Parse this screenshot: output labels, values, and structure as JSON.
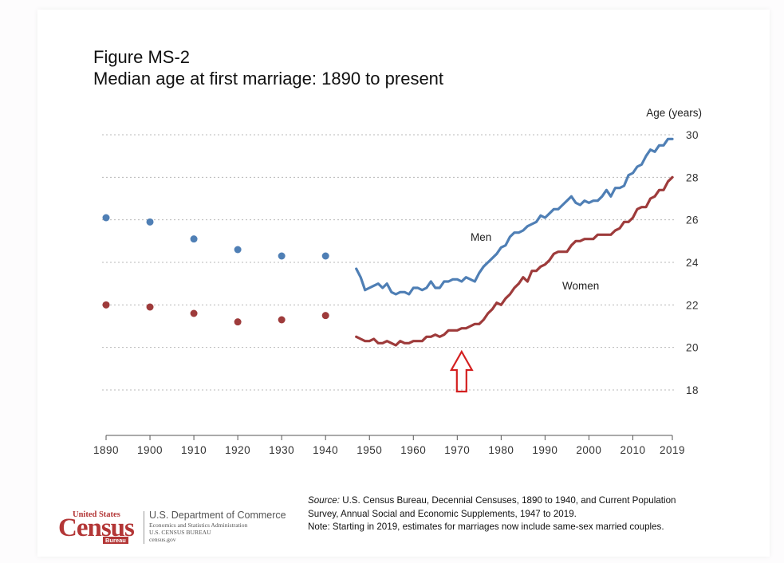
{
  "figure": {
    "title_line1": "Figure MS-2",
    "title_line2": "Median age at first marriage: 1890 to present"
  },
  "chart_data": {
    "type": "line",
    "title": "Median age at first marriage: 1890 to present",
    "ylabel": "Age (years)",
    "xlabel": "",
    "xlim": [
      1890,
      2019
    ],
    "ylim": [
      16,
      30
    ],
    "x_ticks": [
      1890,
      1900,
      1910,
      1920,
      1930,
      1940,
      1950,
      1960,
      1970,
      1980,
      1990,
      2000,
      2010,
      2019
    ],
    "y_ticks": [
      18,
      20,
      22,
      24,
      26,
      28,
      30
    ],
    "grid": "horizontal dotted",
    "series": [
      {
        "name": "Men",
        "color": "#4f7fb5",
        "points_decennial": [
          [
            1890,
            26.1
          ],
          [
            1900,
            25.9
          ],
          [
            1910,
            25.1
          ],
          [
            1920,
            24.6
          ],
          [
            1930,
            24.3
          ],
          [
            1940,
            24.3
          ]
        ],
        "line": [
          [
            1947,
            23.7
          ],
          [
            1948,
            23.3
          ],
          [
            1949,
            22.7
          ],
          [
            1950,
            22.8
          ],
          [
            1951,
            22.9
          ],
          [
            1952,
            23.0
          ],
          [
            1953,
            22.8
          ],
          [
            1954,
            23.0
          ],
          [
            1955,
            22.6
          ],
          [
            1956,
            22.5
          ],
          [
            1957,
            22.6
          ],
          [
            1958,
            22.6
          ],
          [
            1959,
            22.5
          ],
          [
            1960,
            22.8
          ],
          [
            1961,
            22.8
          ],
          [
            1962,
            22.7
          ],
          [
            1963,
            22.8
          ],
          [
            1964,
            23.1
          ],
          [
            1965,
            22.8
          ],
          [
            1966,
            22.8
          ],
          [
            1967,
            23.1
          ],
          [
            1968,
            23.1
          ],
          [
            1969,
            23.2
          ],
          [
            1970,
            23.2
          ],
          [
            1971,
            23.1
          ],
          [
            1972,
            23.3
          ],
          [
            1973,
            23.2
          ],
          [
            1974,
            23.1
          ],
          [
            1975,
            23.5
          ],
          [
            1976,
            23.8
          ],
          [
            1977,
            24.0
          ],
          [
            1978,
            24.2
          ],
          [
            1979,
            24.4
          ],
          [
            1980,
            24.7
          ],
          [
            1981,
            24.8
          ],
          [
            1982,
            25.2
          ],
          [
            1983,
            25.4
          ],
          [
            1984,
            25.4
          ],
          [
            1985,
            25.5
          ],
          [
            1986,
            25.7
          ],
          [
            1987,
            25.8
          ],
          [
            1988,
            25.9
          ],
          [
            1989,
            26.2
          ],
          [
            1990,
            26.1
          ],
          [
            1991,
            26.3
          ],
          [
            1992,
            26.5
          ],
          [
            1993,
            26.5
          ],
          [
            1994,
            26.7
          ],
          [
            1995,
            26.9
          ],
          [
            1996,
            27.1
          ],
          [
            1997,
            26.8
          ],
          [
            1998,
            26.7
          ],
          [
            1999,
            26.9
          ],
          [
            2000,
            26.8
          ],
          [
            2001,
            26.9
          ],
          [
            2002,
            26.9
          ],
          [
            2003,
            27.1
          ],
          [
            2004,
            27.4
          ],
          [
            2005,
            27.1
          ],
          [
            2006,
            27.5
          ],
          [
            2007,
            27.5
          ],
          [
            2008,
            27.6
          ],
          [
            2009,
            28.1
          ],
          [
            2010,
            28.2
          ],
          [
            2011,
            28.5
          ],
          [
            2012,
            28.6
          ],
          [
            2013,
            29.0
          ],
          [
            2014,
            29.3
          ],
          [
            2015,
            29.2
          ],
          [
            2016,
            29.5
          ],
          [
            2017,
            29.5
          ],
          [
            2018,
            29.8
          ],
          [
            2019,
            29.8
          ]
        ]
      },
      {
        "name": "Women",
        "color": "#9e3b3b",
        "points_decennial": [
          [
            1890,
            22.0
          ],
          [
            1900,
            21.9
          ],
          [
            1910,
            21.6
          ],
          [
            1920,
            21.2
          ],
          [
            1930,
            21.3
          ],
          [
            1940,
            21.5
          ]
        ],
        "line": [
          [
            1947,
            20.5
          ],
          [
            1948,
            20.4
          ],
          [
            1949,
            20.3
          ],
          [
            1950,
            20.3
          ],
          [
            1951,
            20.4
          ],
          [
            1952,
            20.2
          ],
          [
            1953,
            20.2
          ],
          [
            1954,
            20.3
          ],
          [
            1955,
            20.2
          ],
          [
            1956,
            20.1
          ],
          [
            1957,
            20.3
          ],
          [
            1958,
            20.2
          ],
          [
            1959,
            20.2
          ],
          [
            1960,
            20.3
          ],
          [
            1961,
            20.3
          ],
          [
            1962,
            20.3
          ],
          [
            1963,
            20.5
          ],
          [
            1964,
            20.5
          ],
          [
            1965,
            20.6
          ],
          [
            1966,
            20.5
          ],
          [
            1967,
            20.6
          ],
          [
            1968,
            20.8
          ],
          [
            1969,
            20.8
          ],
          [
            1970,
            20.8
          ],
          [
            1971,
            20.9
          ],
          [
            1972,
            20.9
          ],
          [
            1973,
            21.0
          ],
          [
            1974,
            21.1
          ],
          [
            1975,
            21.1
          ],
          [
            1976,
            21.3
          ],
          [
            1977,
            21.6
          ],
          [
            1978,
            21.8
          ],
          [
            1979,
            22.1
          ],
          [
            1980,
            22.0
          ],
          [
            1981,
            22.3
          ],
          [
            1982,
            22.5
          ],
          [
            1983,
            22.8
          ],
          [
            1984,
            23.0
          ],
          [
            1985,
            23.3
          ],
          [
            1986,
            23.1
          ],
          [
            1987,
            23.6
          ],
          [
            1988,
            23.6
          ],
          [
            1989,
            23.8
          ],
          [
            1990,
            23.9
          ],
          [
            1991,
            24.1
          ],
          [
            1992,
            24.4
          ],
          [
            1993,
            24.5
          ],
          [
            1994,
            24.5
          ],
          [
            1995,
            24.5
          ],
          [
            1996,
            24.8
          ],
          [
            1997,
            25.0
          ],
          [
            1998,
            25.0
          ],
          [
            1999,
            25.1
          ],
          [
            2000,
            25.1
          ],
          [
            2001,
            25.1
          ],
          [
            2002,
            25.3
          ],
          [
            2003,
            25.3
          ],
          [
            2004,
            25.3
          ],
          [
            2005,
            25.3
          ],
          [
            2006,
            25.5
          ],
          [
            2007,
            25.6
          ],
          [
            2008,
            25.9
          ],
          [
            2009,
            25.9
          ],
          [
            2010,
            26.1
          ],
          [
            2011,
            26.5
          ],
          [
            2012,
            26.6
          ],
          [
            2013,
            26.6
          ],
          [
            2014,
            27.0
          ],
          [
            2015,
            27.1
          ],
          [
            2016,
            27.4
          ],
          [
            2017,
            27.4
          ],
          [
            2018,
            27.8
          ],
          [
            2019,
            28.0
          ]
        ]
      }
    ],
    "annotations": [
      {
        "type": "arrow",
        "x": 1971,
        "pointing": "up",
        "color": "#d42020"
      }
    ]
  },
  "footer": {
    "source_label": "Source:",
    "source_text": " U.S. Census Bureau, Decennial Censuses, 1890 to 1940, and Current Population",
    "source_line2": "Survey, Annual Social and Economic Supplements, 1947 to 2019.",
    "note": "Note: Starting in 2019, estimates for marriages now include same-sex married couples."
  },
  "logo": {
    "top_text": "United States",
    "word": "Census",
    "bureau": "Bureau",
    "dept_line1": "U.S. Department of Commerce",
    "dept_line2": "Economics and Statistics Administration",
    "dept_line3": "U.S. CENSUS BUREAU",
    "dept_line4": "census.gov",
    "color": "#b33636"
  }
}
